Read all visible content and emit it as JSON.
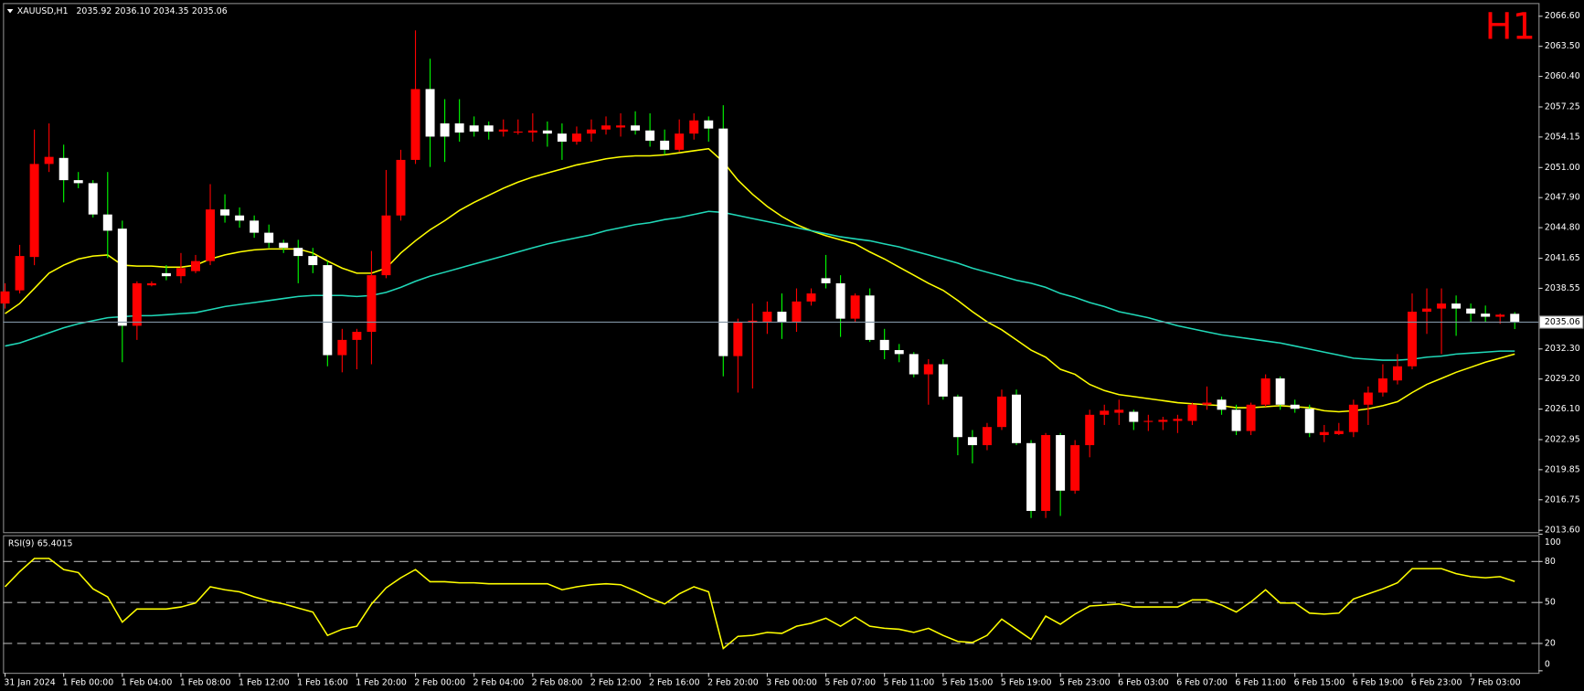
{
  "chart_data": {
    "type": "candlestick",
    "title": "XAUUSD,H1",
    "ohlc_labels": [
      "2035.92",
      "2036.10",
      "2034.35",
      "2035.06"
    ],
    "timeframe": "H1",
    "categories": [
      "31 Jan 2024",
      null,
      null,
      null,
      "1 Feb 00:00",
      null,
      null,
      null,
      "1 Feb 04:00",
      null,
      null,
      null,
      "1 Feb 08:00",
      null,
      null,
      null,
      "1 Feb 12:00",
      null,
      null,
      null,
      "1 Feb 16:00",
      null,
      null,
      null,
      "1 Feb 20:00",
      null,
      null,
      null,
      "2 Feb 00:00",
      null,
      null,
      null,
      "2 Feb 04:00",
      null,
      null,
      null,
      "2 Feb 08:00",
      null,
      null,
      null,
      "2 Feb 12:00",
      null,
      null,
      null,
      "2 Feb 16:00",
      null,
      null,
      null,
      "2 Feb 20:00",
      null,
      null,
      null,
      "3 Feb 00:00",
      null,
      null,
      null,
      "5 Feb 07:00",
      null,
      null,
      null,
      "5 Feb 11:00",
      null,
      null,
      null,
      "5 Feb 15:00",
      null,
      null,
      null,
      "5 Feb 19:00",
      null,
      null,
      null,
      "5 Feb 23:00",
      null,
      null,
      null,
      "6 Feb 03:00",
      null,
      null,
      null,
      "6 Feb 07:00",
      null,
      null,
      null,
      "6 Feb 11:00",
      null,
      null,
      null,
      "6 Feb 15:00",
      null,
      null,
      null,
      "6 Feb 19:00",
      null,
      null,
      null,
      "6 Feb 23:00",
      null,
      null,
      null,
      "7 Feb 03:00",
      null,
      null,
      null
    ],
    "open": [
      2036.98,
      2038.34,
      2041.78,
      2051.37,
      2051.99,
      2049.7,
      2049.39,
      2046.16,
      2044.7,
      2034.69,
      2038.86,
      2040.11,
      2039.8,
      2040.32,
      2041.36,
      2046.68,
      2046.06,
      2045.53,
      2044.28,
      2043.24,
      2042.72,
      2041.88,
      2040.94,
      2031.66,
      2033.23,
      2034.06,
      2039.9,
      2046.06,
      2051.79,
      2059.09,
      2055.55,
      2055.55,
      2055.34,
      2055.34,
      2054.71,
      2054.61,
      2054.61,
      2054.82,
      2054.5,
      2053.67,
      2054.5,
      2054.92,
      2055.13,
      2055.34,
      2054.82,
      2053.77,
      2052.83,
      2054.5,
      2055.86,
      2055.02,
      2031.56,
      2035.0,
      2035.1,
      2036.14,
      2035.1,
      2037.19,
      2039.59,
      2039.07,
      2035.42,
      2037.81,
      2033.23,
      2032.18,
      2031.77,
      2029.68,
      2030.72,
      2027.39,
      2023.21,
      2022.38,
      2024.25,
      2027.59,
      2022.59,
      2015.6,
      2023.42,
      2017.69,
      2022.38,
      2025.51,
      2025.72,
      2025.82,
      2024.78,
      2024.78,
      2024.88,
      2024.88,
      2026.55,
      2027.07,
      2026.03,
      2023.84,
      2026.55,
      2029.26,
      2026.55,
      2026.13,
      2023.42,
      2023.52,
      2023.73,
      2026.55,
      2027.8,
      2029.05,
      2030.51,
      2036.14,
      2036.46,
      2036.98,
      2036.46,
      2035.94,
      2035.62,
      2035.92
    ],
    "high": [
      2039.07,
      2043.03,
      2054.92,
      2055.55,
      2053.36,
      2050.54,
      2049.7,
      2050.54,
      2045.53,
      2039.27,
      2039.27,
      2040.94,
      2042.19,
      2041.99,
      2049.29,
      2048.24,
      2046.89,
      2046.06,
      2045.12,
      2043.55,
      2043.55,
      2042.72,
      2041.36,
      2034.37,
      2034.37,
      2042.4,
      2050.75,
      2052.83,
      2065.14,
      2062.22,
      2058.05,
      2058.05,
      2056.27,
      2055.75,
      2055.96,
      2055.96,
      2056.59,
      2055.75,
      2055.55,
      2055.23,
      2055.96,
      2056.27,
      2056.59,
      2056.8,
      2056.59,
      2054.92,
      2055.96,
      2056.59,
      2056.27,
      2057.42,
      2035.42,
      2036.98,
      2037.19,
      2038.02,
      2038.54,
      2038.54,
      2041.99,
      2039.9,
      2038.02,
      2038.54,
      2034.37,
      2032.81,
      2031.97,
      2031.24,
      2031.24,
      2027.59,
      2023.94,
      2024.67,
      2028.11,
      2028.11,
      2022.9,
      2023.63,
      2023.63,
      2022.9,
      2026.03,
      2026.55,
      2027.07,
      2026.03,
      2025.51,
      2025.3,
      2025.51,
      2026.76,
      2028.43,
      2027.39,
      2026.55,
      2026.76,
      2029.68,
      2029.47,
      2027.07,
      2026.55,
      2024.46,
      2024.67,
      2027.07,
      2028.43,
      2030.72,
      2031.77,
      2038.02,
      2038.54,
      2038.54,
      2037.81,
      2036.98,
      2036.77,
      2035.94,
      2036.1
    ],
    "low": [
      2036.46,
      2038.02,
      2040.94,
      2050.54,
      2047.41,
      2048.87,
      2045.85,
      2041.67,
      2030.93,
      2033.23,
      2038.75,
      2039.38,
      2039.07,
      2040.11,
      2040.94,
      2045.32,
      2044.8,
      2043.76,
      2042.72,
      2042.19,
      2039.07,
      2040.11,
      2030.51,
      2029.89,
      2030.2,
      2030.72,
      2039.59,
      2045.53,
      2051.37,
      2051.06,
      2051.58,
      2053.67,
      2054.19,
      2053.88,
      2054.19,
      2054.4,
      2053.67,
      2053.15,
      2051.79,
      2053.36,
      2053.67,
      2054.4,
      2054.19,
      2054.4,
      2053.15,
      2052.31,
      2052.63,
      2053.88,
      2053.67,
      2029.47,
      2027.8,
      2028.22,
      2033.85,
      2033.33,
      2034.06,
      2036.77,
      2038.54,
      2033.54,
      2035.1,
      2033.02,
      2031.24,
      2030.93,
      2029.37,
      2026.55,
      2027.07,
      2021.34,
      2020.5,
      2021.86,
      2023.94,
      2022.38,
      2014.87,
      2014.87,
      2015.08,
      2017.37,
      2021.13,
      2024.46,
      2024.46,
      2023.94,
      2023.84,
      2023.94,
      2023.63,
      2024.46,
      2026.03,
      2025.51,
      2023.42,
      2023.42,
      2026.34,
      2026.03,
      2025.72,
      2023.21,
      2022.69,
      2023.42,
      2023.21,
      2024.46,
      2027.39,
      2028.64,
      2030.2,
      2033.85,
      2031.77,
      2033.65,
      2035.1,
      2035.1,
      2034.89,
      2034.35
    ],
    "close": [
      2038.23,
      2041.88,
      2051.37,
      2052.1,
      2049.7,
      2049.39,
      2046.16,
      2044.49,
      2034.69,
      2039.07,
      2039.07,
      2039.8,
      2040.63,
      2041.36,
      2046.68,
      2046.06,
      2045.53,
      2044.28,
      2043.24,
      2042.72,
      2041.88,
      2040.94,
      2031.66,
      2033.23,
      2034.06,
      2039.9,
      2046.06,
      2051.79,
      2059.09,
      2054.19,
      2054.19,
      2054.61,
      2054.71,
      2054.71,
      2054.92,
      2054.71,
      2054.82,
      2054.5,
      2053.67,
      2054.5,
      2054.92,
      2055.34,
      2055.34,
      2054.82,
      2053.77,
      2052.83,
      2054.5,
      2055.86,
      2055.02,
      2031.56,
      2035.1,
      2035.21,
      2036.14,
      2035.1,
      2037.19,
      2038.02,
      2039.07,
      2035.42,
      2037.81,
      2033.23,
      2032.18,
      2031.77,
      2029.68,
      2030.72,
      2027.39,
      2023.21,
      2022.38,
      2024.25,
      2027.39,
      2022.59,
      2015.6,
      2023.42,
      2017.69,
      2022.38,
      2025.51,
      2025.93,
      2026.03,
      2024.78,
      2024.88,
      2024.99,
      2025.09,
      2026.55,
      2026.76,
      2026.03,
      2023.84,
      2026.55,
      2029.26,
      2026.55,
      2026.13,
      2023.63,
      2023.73,
      2023.84,
      2026.55,
      2027.8,
      2029.26,
      2030.51,
      2036.14,
      2036.46,
      2036.98,
      2036.46,
      2035.94,
      2035.62,
      2035.83,
      2035.06
    ],
    "up_color": "#ff0000",
    "down_color": "#ffffff",
    "down_wick_color": "#00ff00",
    "overlays": [
      {
        "color": "#ffff00",
        "values": [
          2035.94,
          2036.98,
          2038.54,
          2040.11,
          2040.94,
          2041.57,
          2041.88,
          2041.99,
          2040.94,
          2040.84,
          2040.84,
          2040.73,
          2040.73,
          2040.94,
          2041.57,
          2041.99,
          2042.3,
          2042.51,
          2042.61,
          2042.61,
          2042.61,
          2042.19,
          2041.36,
          2040.63,
          2040.11,
          2040.11,
          2040.63,
          2042.19,
          2043.45,
          2044.59,
          2045.53,
          2046.58,
          2047.41,
          2048.14,
          2048.87,
          2049.5,
          2050.02,
          2050.44,
          2050.85,
          2051.27,
          2051.58,
          2051.9,
          2052.1,
          2052.21,
          2052.21,
          2052.31,
          2052.52,
          2052.73,
          2052.94,
          2051.58,
          2049.7,
          2048.24,
          2046.99,
          2045.95,
          2045.12,
          2044.49,
          2043.97,
          2043.55,
          2043.13,
          2042.3,
          2041.57,
          2040.73,
          2039.9,
          2039.07,
          2038.34,
          2037.29,
          2036.14,
          2035.1,
          2034.27,
          2033.23,
          2032.18,
          2031.45,
          2030.2,
          2029.68,
          2028.64,
          2028.01,
          2027.59,
          2027.39,
          2027.18,
          2026.97,
          2026.76,
          2026.65,
          2026.55,
          2026.45,
          2026.24,
          2026.24,
          2026.34,
          2026.45,
          2026.34,
          2026.24,
          2025.93,
          2025.82,
          2025.93,
          2026.13,
          2026.45,
          2026.86,
          2027.8,
          2028.64,
          2029.26,
          2029.89,
          2030.41,
          2030.93,
          2031.35,
          2031.77
        ]
      },
      {
        "color": "#20d8b8",
        "values": [
          2032.6,
          2032.91,
          2033.43,
          2033.96,
          2034.48,
          2034.89,
          2035.21,
          2035.52,
          2035.62,
          2035.73,
          2035.73,
          2035.83,
          2035.94,
          2036.04,
          2036.35,
          2036.67,
          2036.88,
          2037.08,
          2037.29,
          2037.5,
          2037.71,
          2037.81,
          2037.81,
          2037.81,
          2037.71,
          2037.81,
          2038.13,
          2038.65,
          2039.27,
          2039.8,
          2040.21,
          2040.63,
          2041.05,
          2041.46,
          2041.88,
          2042.3,
          2042.72,
          2043.13,
          2043.45,
          2043.76,
          2044.07,
          2044.49,
          2044.8,
          2045.12,
          2045.32,
          2045.64,
          2045.85,
          2046.16,
          2046.48,
          2046.37,
          2046.06,
          2045.74,
          2045.43,
          2045.12,
          2044.8,
          2044.49,
          2044.18,
          2043.86,
          2043.65,
          2043.45,
          2043.13,
          2042.82,
          2042.4,
          2041.99,
          2041.57,
          2041.15,
          2040.63,
          2040.21,
          2039.8,
          2039.38,
          2039.07,
          2038.65,
          2038.02,
          2037.61,
          2037.08,
          2036.67,
          2036.14,
          2035.83,
          2035.52,
          2035.1,
          2034.69,
          2034.37,
          2034.06,
          2033.75,
          2033.54,
          2033.33,
          2033.12,
          2032.91,
          2032.6,
          2032.29,
          2031.97,
          2031.66,
          2031.35,
          2031.24,
          2031.14,
          2031.14,
          2031.24,
          2031.45,
          2031.56,
          2031.77,
          2031.87,
          2031.97,
          2032.08,
          2032.08
        ]
      }
    ],
    "price_line_color": "#7f93a3",
    "ylim": [
      2013.41,
      2067.96
    ],
    "yticks": [
      {
        "value": 2066.6,
        "label": "2066.60"
      },
      {
        "value": 2063.5,
        "label": "2063.50"
      },
      {
        "value": 2060.4,
        "label": "2060.40"
      },
      2057.25,
      2054.15,
      {
        "value": 2051.0,
        "label": "2051.00"
      },
      {
        "value": 2047.9,
        "label": "2047.90"
      },
      {
        "value": 2044.8,
        "label": "2044.80"
      },
      2041.65,
      2038.55,
      {
        "value": 2032.3,
        "label": "2032.30"
      },
      {
        "value": 2029.2,
        "label": "2029.20"
      },
      {
        "value": 2026.1,
        "label": "2026.10"
      },
      2022.95,
      2019.85,
      2016.75,
      {
        "value": 2013.6,
        "label": "2013.60"
      }
    ],
    "rsi": {
      "title": "RSI(9)",
      "color": "#ffff00",
      "values": [
        61.5,
        72.6,
        82.2,
        82.2,
        74.1,
        71.9,
        60.0,
        54.1,
        35.6,
        45.2,
        45.2,
        45.2,
        46.7,
        49.6,
        61.5,
        59.3,
        57.8,
        54.1,
        51.1,
        48.9,
        45.9,
        43.0,
        25.9,
        30.4,
        32.6,
        48.9,
        60.7,
        68.1,
        74.1,
        65.2,
        65.2,
        64.4,
        64.4,
        63.7,
        63.7,
        63.7,
        63.7,
        63.7,
        59.3,
        61.5,
        63.0,
        63.7,
        63.0,
        58.5,
        53.3,
        48.9,
        56.3,
        61.5,
        57.8,
        16.3,
        25.2,
        25.9,
        28.1,
        27.4,
        32.6,
        34.8,
        38.5,
        32.6,
        39.3,
        32.6,
        31.1,
        30.4,
        28.1,
        31.1,
        25.9,
        21.5,
        20.7,
        25.9,
        37.8,
        30.4,
        23.0,
        40.0,
        34.1,
        41.5,
        47.4,
        48.1,
        48.9,
        46.7,
        46.7,
        46.7,
        46.7,
        51.9,
        51.9,
        48.1,
        43.0,
        50.4,
        59.3,
        49.6,
        49.6,
        42.2,
        41.5,
        42.2,
        52.6,
        56.3,
        60.0,
        64.4,
        74.8,
        74.8,
        74.8,
        71.1,
        68.9,
        68.1,
        68.9,
        65.4015
      ],
      "ylim": [
        0,
        100
      ],
      "yticks": [
        100,
        80,
        50,
        20,
        0
      ],
      "levels": [
        80,
        50,
        20
      ]
    }
  }
}
